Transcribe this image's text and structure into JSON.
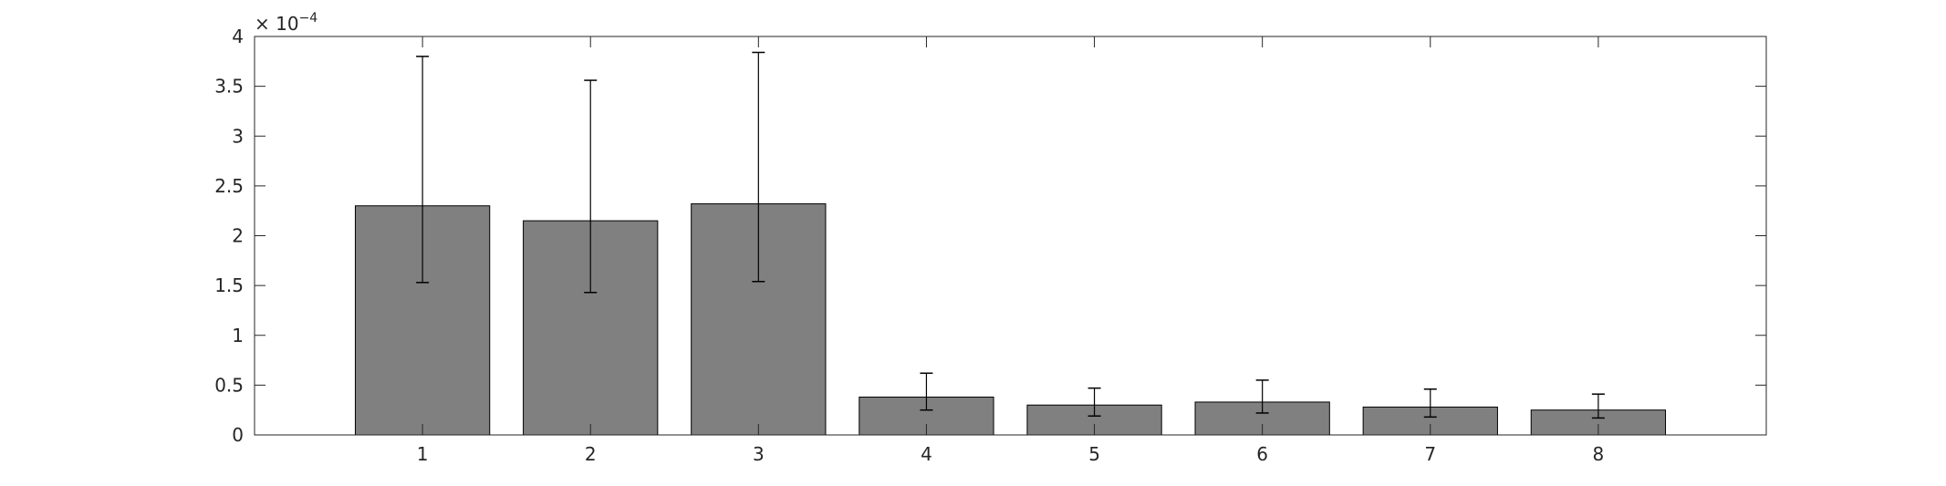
{
  "chart_data": {
    "type": "bar",
    "categories": [
      "1",
      "2",
      "3",
      "4",
      "5",
      "6",
      "7",
      "8"
    ],
    "values": [
      2.3,
      2.15,
      2.32,
      0.38,
      0.3,
      0.33,
      0.28,
      0.25
    ],
    "error_low": [
      1.53,
      1.43,
      1.54,
      0.25,
      0.19,
      0.22,
      0.18,
      0.17
    ],
    "error_high": [
      3.8,
      3.56,
      3.84,
      0.62,
      0.47,
      0.55,
      0.46,
      0.41
    ],
    "scale_label": {
      "base": "× 10",
      "exponent": "−4"
    },
    "y_ticks": [
      "0",
      "0.5",
      "1",
      "1.5",
      "2",
      "2.5",
      "3",
      "3.5",
      "4"
    ],
    "ylim": [
      0,
      4
    ],
    "xlim": [
      0,
      9
    ],
    "grid": false,
    "title": "",
    "xlabel": "",
    "ylabel": "",
    "colors": {
      "bar_fill": "#808080",
      "bar_stroke": "#000000",
      "axis": "#262626"
    }
  }
}
